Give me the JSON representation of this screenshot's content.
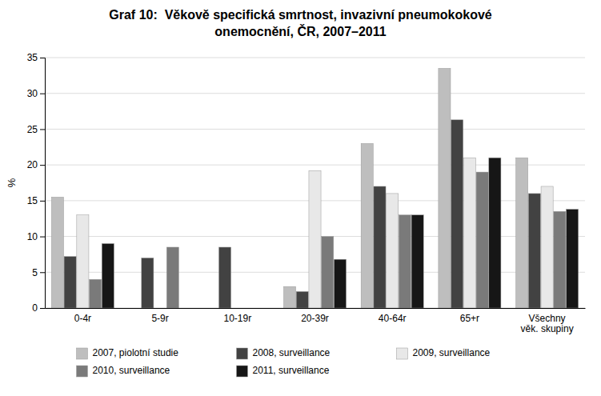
{
  "chart_data": {
    "type": "bar",
    "title": "Graf 10:  Věkově specifická smrtnost, invazivní pneumokokové\nonemocnění, ČR, 2007–2011",
    "ylabel": "%",
    "categories": [
      "0-4r",
      "5-9r",
      "10-19r",
      "20-39r",
      "40-64r",
      "65+r",
      "Všechny\nvěk. skupiny"
    ],
    "series": [
      {
        "name": "2007, piolotní studie",
        "color": "#bebebe",
        "values": [
          15.5,
          null,
          null,
          3.0,
          23.0,
          33.5,
          21.0
        ]
      },
      {
        "name": "2008, surveillance",
        "color": "#424242",
        "values": [
          7.2,
          7.0,
          8.5,
          2.3,
          17.0,
          26.3,
          16.0
        ]
      },
      {
        "name": "2009, surveillance",
        "color": "#e8e8e8",
        "values": [
          13.0,
          null,
          null,
          19.2,
          16.0,
          21.0,
          17.0
        ]
      },
      {
        "name": "2010, surveillance",
        "color": "#7a7a7a",
        "values": [
          4.0,
          8.5,
          null,
          10.0,
          13.0,
          19.0,
          13.5
        ]
      },
      {
        "name": "2011, surveillance",
        "color": "#161616",
        "values": [
          9.0,
          null,
          null,
          6.8,
          13.0,
          21.0,
          13.8
        ]
      }
    ],
    "ylim": [
      0,
      35
    ],
    "yticks": [
      0,
      5,
      10,
      15,
      20,
      25,
      30,
      35
    ],
    "grid": true,
    "legend": "bottom"
  }
}
